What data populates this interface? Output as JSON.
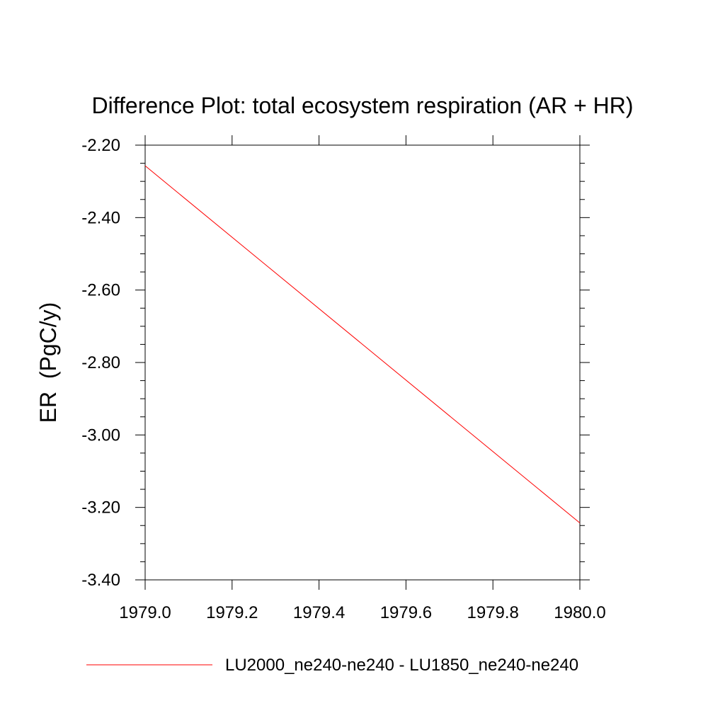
{
  "chart_data": {
    "type": "line",
    "title": "Difference Plot: total ecosystem respiration (AR + HR)",
    "xlabel": "",
    "ylabel": "ER  (PgC/y)",
    "xlim": [
      1979.0,
      1980.0
    ],
    "ylim": [
      -3.4,
      -2.2
    ],
    "x_ticks": [
      1979.0,
      1979.2,
      1979.4,
      1979.6,
      1979.8,
      1980.0
    ],
    "x_tick_labels": [
      "1979.0",
      "1979.2",
      "1979.4",
      "1979.6",
      "1979.8",
      "1980.0"
    ],
    "y_ticks": [
      -2.2,
      -2.4,
      -2.6,
      -2.8,
      -3.0,
      -3.2,
      -3.4
    ],
    "y_tick_labels": [
      "-2.20",
      "-2.40",
      "-2.60",
      "-2.80",
      "-3.00",
      "-3.20",
      "-3.40"
    ],
    "grid": false,
    "legend_position": "bottom",
    "series": [
      {
        "name": "LU2000_ne240-ne240 - LU1850_ne240-ne240",
        "color": "#ff0000",
        "x": [
          1979.0,
          1980.0
        ],
        "y": [
          -2.257,
          -3.243
        ]
      }
    ]
  }
}
